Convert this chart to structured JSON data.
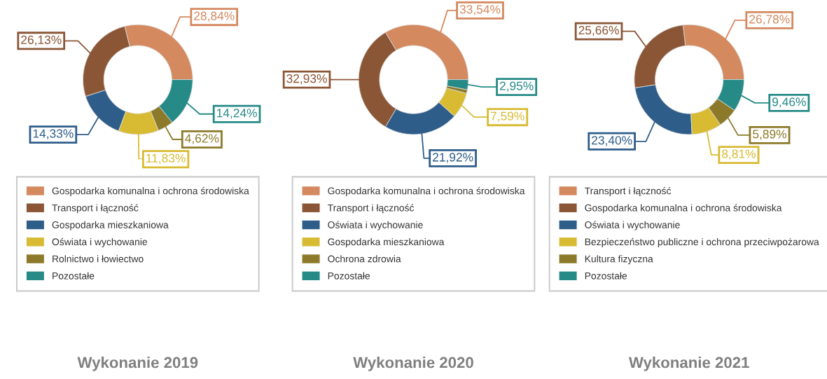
{
  "chart_data": [
    {
      "type": "donut",
      "title": "Wykonanie 2019",
      "legend": "bottom",
      "categories": [
        "Gospodarka komunalna i ochrona środowiska",
        "Transport i łączność",
        "Gospodarka mieszkaniowa",
        "Oświata i wychowanie",
        "Rolnictwo i łowiectwo",
        "Pozostałe"
      ],
      "values": [
        28.84,
        26.13,
        14.33,
        11.83,
        4.62,
        14.24
      ],
      "value_labels": [
        "28,84%",
        "26,13%",
        "14,33%",
        "11,83%",
        "4,62%",
        "14,24%"
      ],
      "colors": [
        "#d4895f",
        "#8b5636",
        "#2f5d8a",
        "#d8bb33",
        "#8c7a2a",
        "#268a87"
      ]
    },
    {
      "type": "donut",
      "title": "Wykonanie 2020",
      "legend": "bottom",
      "categories": [
        "Gospodarka komunalna i ochrona środowiska",
        "Transport i łączność",
        "Oświata i wychowanie",
        "Gospodarka mieszkaniowa",
        "Ochrona zdrowia",
        "Pozostałe"
      ],
      "values": [
        33.54,
        32.93,
        21.92,
        7.59,
        1.07,
        2.95
      ],
      "value_labels": [
        "33,54%",
        "32,93%",
        "21,92%",
        "7,59%",
        null,
        "2,95%"
      ],
      "colors": [
        "#d4895f",
        "#8b5636",
        "#2f5d8a",
        "#d8bb33",
        "#8c7a2a",
        "#268a87"
      ]
    },
    {
      "type": "donut",
      "title": "Wykonanie 2021",
      "legend": "bottom",
      "categories": [
        "Transport i łączność",
        "Gospodarka komunalna i ochrona środowiska",
        "Oświata i wychowanie",
        "Bezpieczeństwo publiczne i ochrona przeciwpożarowa",
        "Kultura fizyczna",
        "Pozostałe"
      ],
      "values": [
        26.78,
        25.66,
        23.4,
        8.81,
        5.89,
        9.46
      ],
      "value_labels": [
        "26,78%",
        "25,66%",
        "23,40%",
        "8,81%",
        "5,89%",
        "9,46%"
      ],
      "colors": [
        "#d4895f",
        "#8b5636",
        "#2f5d8a",
        "#d8bb33",
        "#8c7a2a",
        "#268a87"
      ]
    }
  ]
}
